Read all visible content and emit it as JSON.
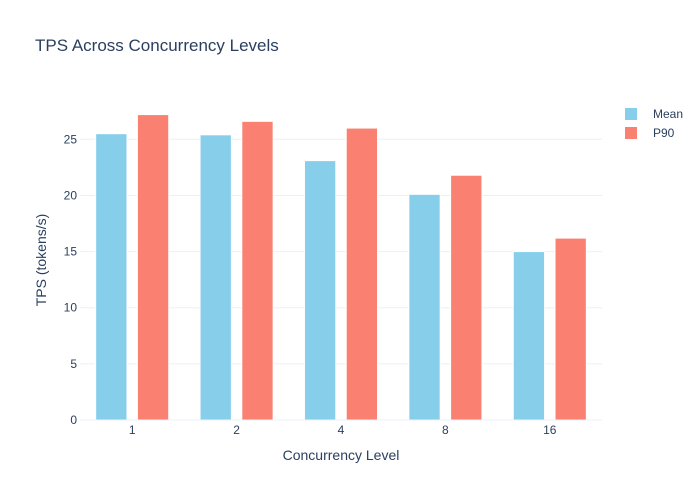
{
  "chart_data": {
    "type": "bar",
    "title": "TPS Across Concurrency Levels",
    "xlabel": "Concurrency Level",
    "ylabel": "TPS (tokens/s)",
    "categories": [
      "1",
      "2",
      "4",
      "8",
      "16"
    ],
    "series": [
      {
        "name": "Mean",
        "color": "#87ceeb",
        "values": [
          25.5,
          25.4,
          23.1,
          20.1,
          15.0
        ]
      },
      {
        "name": "P90",
        "color": "#fa8072",
        "values": [
          27.2,
          26.6,
          26.0,
          21.8,
          16.2
        ]
      }
    ],
    "ylim": [
      0,
      28.5
    ],
    "yticks": [
      0,
      5,
      10,
      15,
      20,
      25
    ],
    "grid": true,
    "legend": "top-right"
  }
}
